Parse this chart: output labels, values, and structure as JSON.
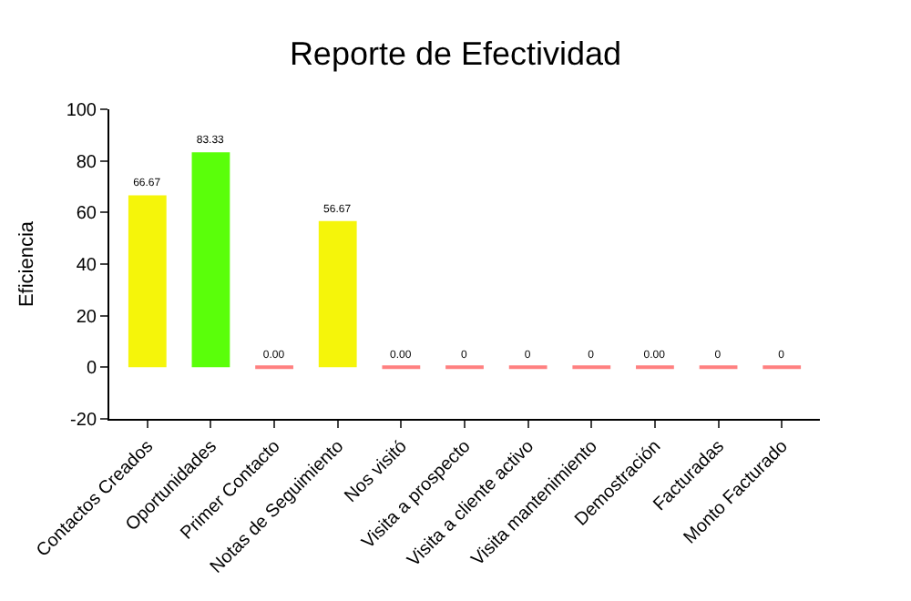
{
  "chart_data": {
    "type": "bar",
    "title": "Reporte de Efectividad",
    "ylabel": "Eficiencia",
    "categories": [
      "Contactos Creados",
      "Oportunidades",
      "Primer Contacto",
      "Notas de Seguimiento",
      "Nos visitó",
      "Visita a prospecto",
      "Visita a cliente activo",
      "Visita mantenimiento",
      "Demostración",
      "Facturadas",
      "Monto Facturado"
    ],
    "values": [
      66.67,
      83.33,
      0,
      56.67,
      0,
      0,
      0,
      0,
      0,
      0,
      0
    ],
    "colors": [
      "#f5f50a",
      "#5aff0a",
      "#ff8080",
      "#f5f50a",
      "#ff8080",
      "#ff8080",
      "#ff8080",
      "#ff8080",
      "#ff8080",
      "#ff8080",
      "#ff8080"
    ],
    "value_labels": [
      "66.67",
      "83.33",
      "0.00",
      "56.67",
      "0.00",
      "0",
      "0",
      "0",
      "0.00",
      "0",
      "0"
    ],
    "ylim": [
      -20,
      100
    ],
    "yticks": [
      -20,
      0,
      20,
      40,
      60,
      80,
      100
    ],
    "legend": false
  }
}
